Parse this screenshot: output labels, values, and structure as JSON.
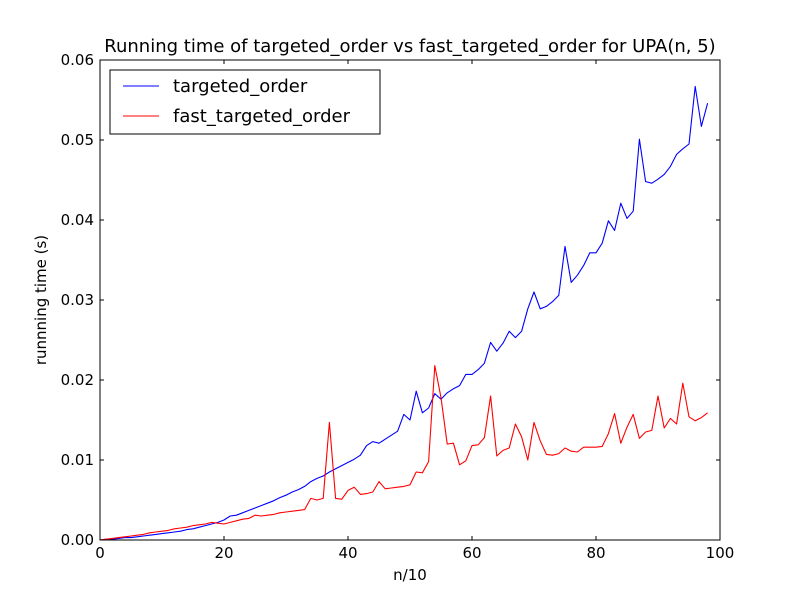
{
  "chart_data": {
    "type": "line",
    "title": "Running time of targeted_order vs fast_targeted_order for UPA(n, 5)",
    "xlabel": "n/10",
    "ylabel": "runnning time (s)",
    "xlim": [
      0,
      100
    ],
    "ylim": [
      0,
      0.06
    ],
    "x_ticks": [
      0,
      20,
      40,
      60,
      80,
      100
    ],
    "x_tick_labels": [
      "0",
      "20",
      "40",
      "60",
      "80",
      "100"
    ],
    "y_ticks": [
      0,
      0.01,
      0.02,
      0.03,
      0.04,
      0.05,
      0.06
    ],
    "y_tick_labels": [
      "0.00",
      "0.01",
      "0.02",
      "0.03",
      "0.04",
      "0.05",
      "0.06"
    ],
    "grid": false,
    "legend_position": "top-left",
    "series": [
      {
        "name": "targeted_order",
        "color": "#0000ff",
        "x": [
          0,
          1,
          2,
          3,
          4,
          5,
          6,
          7,
          8,
          9,
          10,
          11,
          12,
          13,
          14,
          15,
          16,
          17,
          18,
          19,
          20,
          21,
          22,
          23,
          24,
          25,
          26,
          27,
          28,
          29,
          30,
          31,
          32,
          33,
          34,
          35,
          36,
          37,
          38,
          39,
          40,
          41,
          42,
          43,
          44,
          45,
          46,
          47,
          48,
          49,
          50,
          51,
          52,
          53,
          54,
          55,
          56,
          57,
          58,
          59,
          60,
          61,
          62,
          63,
          64,
          65,
          66,
          67,
          68,
          69,
          70,
          71,
          72,
          73,
          74,
          75,
          76,
          77,
          78,
          79,
          80,
          81,
          82,
          83,
          84,
          85,
          86,
          87,
          88,
          89,
          90,
          91,
          92,
          93,
          94,
          95,
          96,
          97,
          98
        ],
        "values": [
          0.0,
          0.0001,
          0.0001,
          0.0002,
          0.0003,
          0.0003,
          0.0004,
          0.0005,
          0.0006,
          0.0007,
          0.0008,
          0.0009,
          0.001,
          0.0011,
          0.0013,
          0.0014,
          0.0016,
          0.0018,
          0.002,
          0.0022,
          0.0025,
          0.003,
          0.0031,
          0.0034,
          0.0037,
          0.004,
          0.0043,
          0.0046,
          0.0049,
          0.0053,
          0.0056,
          0.006,
          0.0063,
          0.0067,
          0.0073,
          0.0077,
          0.008,
          0.0085,
          0.0089,
          0.0093,
          0.0097,
          0.0101,
          0.0106,
          0.0118,
          0.0123,
          0.0121,
          0.0126,
          0.0131,
          0.0136,
          0.0157,
          0.015,
          0.0186,
          0.0159,
          0.0165,
          0.0183,
          0.0176,
          0.0184,
          0.0189,
          0.0193,
          0.0207,
          0.0207,
          0.0213,
          0.0221,
          0.0247,
          0.0236,
          0.0246,
          0.0261,
          0.0253,
          0.0261,
          0.0289,
          0.031,
          0.0289,
          0.0292,
          0.0298,
          0.0306,
          0.0367,
          0.0322,
          0.0331,
          0.0343,
          0.0359,
          0.0359,
          0.0371,
          0.0399,
          0.0387,
          0.0421,
          0.0402,
          0.0411,
          0.0501,
          0.0448,
          0.0446,
          0.0451,
          0.0457,
          0.0467,
          0.0482,
          0.0489,
          0.0495,
          0.0567,
          0.0517,
          0.0546
        ]
      },
      {
        "name": "fast_targeted_order",
        "color": "#ff0000",
        "x": [
          0,
          1,
          2,
          3,
          4,
          5,
          6,
          7,
          8,
          9,
          10,
          11,
          12,
          13,
          14,
          15,
          16,
          17,
          18,
          19,
          20,
          21,
          22,
          23,
          24,
          25,
          26,
          27,
          28,
          29,
          30,
          31,
          32,
          33,
          34,
          35,
          36,
          37,
          38,
          39,
          40,
          41,
          42,
          43,
          44,
          45,
          46,
          47,
          48,
          49,
          50,
          51,
          52,
          53,
          54,
          55,
          56,
          57,
          58,
          59,
          60,
          61,
          62,
          63,
          64,
          65,
          66,
          67,
          68,
          69,
          70,
          71,
          72,
          73,
          74,
          75,
          76,
          77,
          78,
          79,
          80,
          81,
          82,
          83,
          84,
          85,
          86,
          87,
          88,
          89,
          90,
          91,
          92,
          93,
          94,
          95,
          96,
          97,
          98
        ],
        "values": [
          0.0,
          0.0001,
          0.0002,
          0.0003,
          0.0004,
          0.0005,
          0.0006,
          0.0007,
          0.0009,
          0.001,
          0.0011,
          0.0012,
          0.0014,
          0.0015,
          0.0016,
          0.0018,
          0.0019,
          0.002,
          0.0022,
          0.0021,
          0.002,
          0.0022,
          0.0024,
          0.0026,
          0.0027,
          0.0031,
          0.003,
          0.0031,
          0.0032,
          0.0034,
          0.0035,
          0.0036,
          0.0037,
          0.0038,
          0.0052,
          0.005,
          0.0052,
          0.0147,
          0.0052,
          0.0051,
          0.0062,
          0.0066,
          0.0057,
          0.0058,
          0.006,
          0.0073,
          0.0064,
          0.0065,
          0.0066,
          0.0067,
          0.0069,
          0.0085,
          0.0084,
          0.0098,
          0.0218,
          0.0178,
          0.012,
          0.0121,
          0.0094,
          0.0099,
          0.0118,
          0.0119,
          0.0128,
          0.018,
          0.0105,
          0.0112,
          0.0115,
          0.0145,
          0.0129,
          0.01,
          0.0147,
          0.0124,
          0.0107,
          0.0106,
          0.0108,
          0.0115,
          0.0111,
          0.011,
          0.0116,
          0.0116,
          0.0116,
          0.0117,
          0.0133,
          0.0158,
          0.0121,
          0.0141,
          0.0157,
          0.0127,
          0.0135,
          0.0137,
          0.018,
          0.014,
          0.0152,
          0.0145,
          0.0196,
          0.0154,
          0.0149,
          0.0153,
          0.0159
        ]
      }
    ]
  }
}
